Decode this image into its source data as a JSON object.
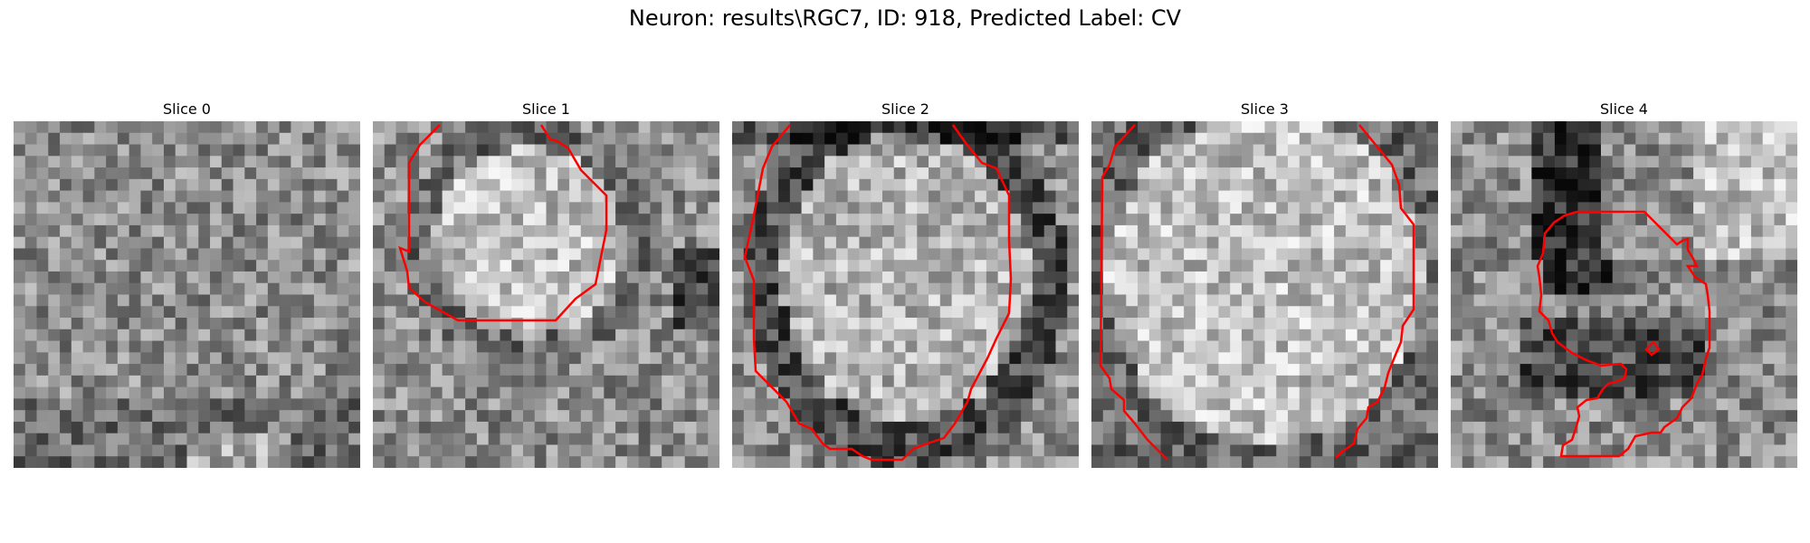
{
  "figure": {
    "title": "Neuron: results\\RGC7, ID: 918, Predicted Label: CV"
  },
  "slices": [
    {
      "title": "Slice 0",
      "has_contour": false,
      "darkness_profile": "textured-dark-bottom"
    },
    {
      "title": "Slice 1",
      "has_contour": true,
      "darkness_profile": "bright-center-cell"
    },
    {
      "title": "Slice 2",
      "has_contour": true,
      "darkness_profile": "large-bright-cell-dark-rim"
    },
    {
      "title": "Slice 3",
      "has_contour": true,
      "darkness_profile": "large-bright-cell"
    },
    {
      "title": "Slice 4",
      "has_contour": true,
      "darkness_profile": "dark-band-left"
    }
  ],
  "colors": {
    "contour": "#ff0000",
    "background": "#ffffff"
  },
  "image": {
    "grid_size": 30,
    "colormap": "gray"
  }
}
